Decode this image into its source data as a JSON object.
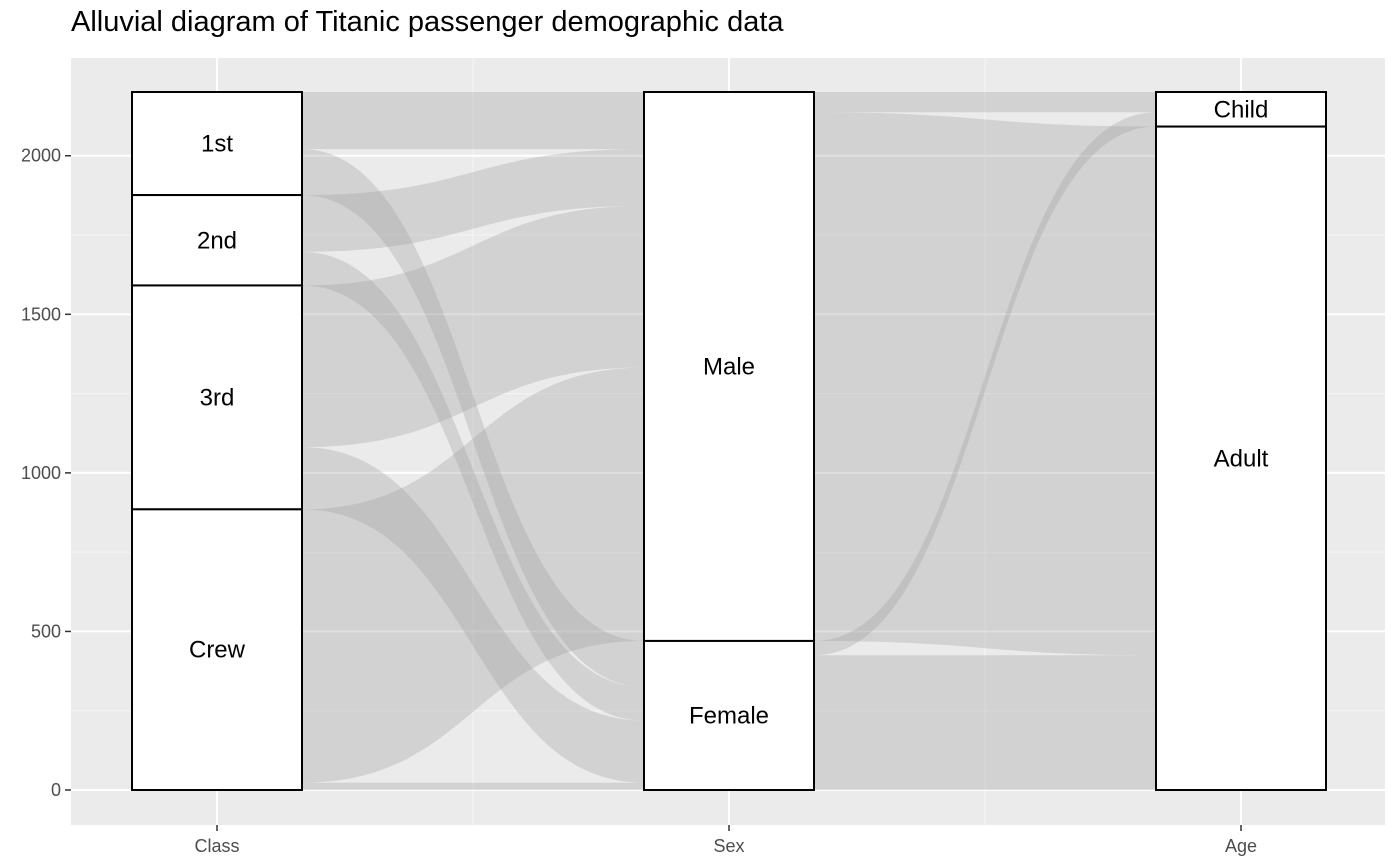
{
  "chart_data": {
    "type": "alluvial",
    "title": "Alluvial diagram of Titanic passenger demographic data",
    "xlabel": "",
    "ylabel": "",
    "axes": [
      "Class",
      "Sex",
      "Age"
    ],
    "ylim": [
      0,
      2201
    ],
    "yticks": [
      0,
      500,
      1000,
      1500,
      2000
    ],
    "grid": true,
    "strata": {
      "Class": [
        {
          "name": "1st",
          "value": 325
        },
        {
          "name": "2nd",
          "value": 285
        },
        {
          "name": "3rd",
          "value": 706
        },
        {
          "name": "Crew",
          "value": 885
        }
      ],
      "Sex": [
        {
          "name": "Male",
          "value": 1731
        },
        {
          "name": "Female",
          "value": 470
        }
      ],
      "Age": [
        {
          "name": "Child",
          "value": 109
        },
        {
          "name": "Adult",
          "value": 2092
        }
      ]
    },
    "flows": {
      "Class_Sex": [
        {
          "from": "1st",
          "to": "Male",
          "value": 180
        },
        {
          "from": "1st",
          "to": "Female",
          "value": 145
        },
        {
          "from": "2nd",
          "to": "Male",
          "value": 179
        },
        {
          "from": "2nd",
          "to": "Female",
          "value": 106
        },
        {
          "from": "3rd",
          "to": "Male",
          "value": 510
        },
        {
          "from": "3rd",
          "to": "Female",
          "value": 196
        },
        {
          "from": "Crew",
          "to": "Male",
          "value": 862
        },
        {
          "from": "Crew",
          "to": "Female",
          "value": 23
        }
      ],
      "Sex_Age": [
        {
          "from": "Male",
          "to": "Child",
          "value": 64
        },
        {
          "from": "Male",
          "to": "Adult",
          "value": 1667
        },
        {
          "from": "Female",
          "to": "Child",
          "value": 45
        },
        {
          "from": "Female",
          "to": "Adult",
          "value": 425
        }
      ]
    }
  }
}
